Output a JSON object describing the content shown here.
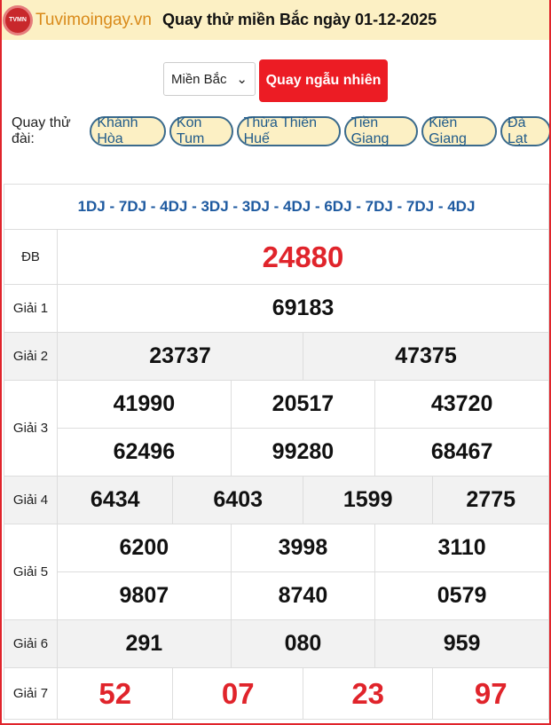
{
  "header": {
    "brand": "Tuvimoingay.vn",
    "logo_text": "TVMN",
    "title": "Quay thử miền Bắc ngày 01-12-2025"
  },
  "controls": {
    "region": "Miền Bắc",
    "random_button": "Quay ngẫu nhiên"
  },
  "stations": {
    "label": "Quay thử đài:",
    "items": [
      "Khánh Hòa",
      "Kon Tum",
      "Thừa Thiên Huế",
      "Tiền Giang",
      "Kiên Giang",
      "Đà Lạt"
    ]
  },
  "results": {
    "codes": "1DJ - 7DJ - 4DJ - 3DJ - 3DJ - 4DJ - 6DJ - 7DJ - 7DJ - 4DJ",
    "labels": [
      "ĐB",
      "Giải 1",
      "Giải 2",
      "Giải 3",
      "Giải 4",
      "Giải 5",
      "Giải 6",
      "Giải 7"
    ],
    "db": "24880",
    "g1": "69183",
    "g2": [
      "23737",
      "47375"
    ],
    "g3": [
      "41990",
      "20517",
      "43720",
      "62496",
      "99280",
      "68467"
    ],
    "g4": [
      "6434",
      "6403",
      "1599",
      "2775"
    ],
    "g5": [
      "6200",
      "3998",
      "3110",
      "9807",
      "8740",
      "0579"
    ],
    "g6": [
      "291",
      "080",
      "959"
    ],
    "g7": [
      "52",
      "07",
      "23",
      "97"
    ]
  }
}
